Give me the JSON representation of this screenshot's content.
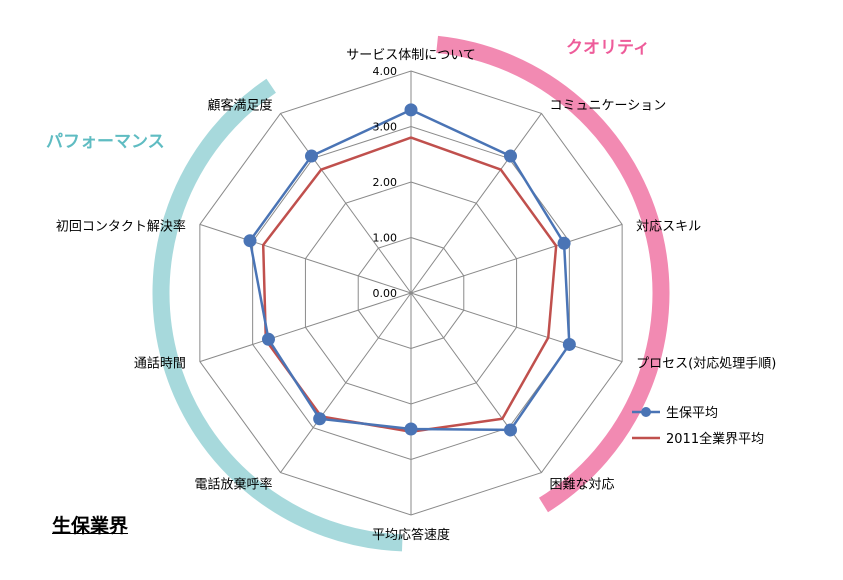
{
  "page_title": "生保業界",
  "chart_data": {
    "type": "radar",
    "axes": [
      "サービス体制について",
      "コミュニケーション",
      "対応スキル",
      "プロセス(対応処理手順)",
      "困難な対応",
      "平均応答速度",
      "電話放棄呼率",
      "通話時間",
      "初回コンタクト解決率",
      "顧客満足度"
    ],
    "range": [
      0,
      4
    ],
    "ticks": [
      "0.00",
      "1.00",
      "2.00",
      "3.00",
      "4.00"
    ],
    "grid": true,
    "legend_position": "right",
    "series": [
      {
        "name": "生保平均",
        "color": "#4a74b5",
        "marker": "circle",
        "values": [
          3.3,
          3.05,
          2.9,
          3.0,
          3.05,
          2.45,
          2.8,
          2.7,
          3.05,
          3.05
        ]
      },
      {
        "name": "2011全業界平均",
        "color": "#c0504d",
        "marker": "none",
        "values": [
          2.8,
          2.75,
          2.75,
          2.6,
          2.8,
          2.5,
          2.75,
          2.75,
          2.8,
          2.75
        ]
      }
    ],
    "groups": [
      {
        "label": "クオリティ",
        "color": "#f28ab2"
      },
      {
        "label": "パフォーマンス",
        "color": "#a7d9dc"
      }
    ]
  }
}
